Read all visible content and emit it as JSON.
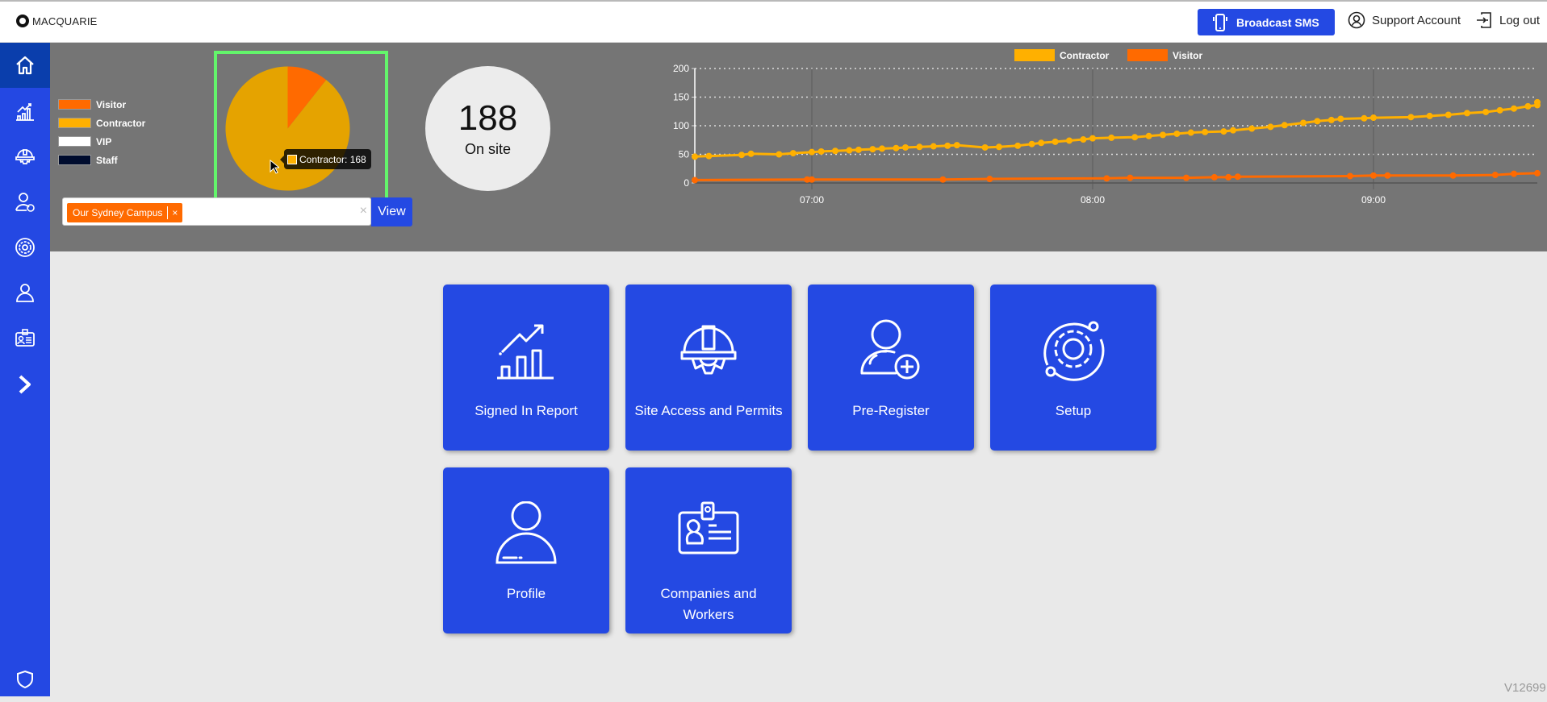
{
  "header": {
    "logo_text": "MACQUARIE",
    "broadcast_label": "Broadcast SMS",
    "support_label": "Support Account",
    "logout_label": "Log out"
  },
  "sidebar": {
    "items": [
      {
        "name": "home",
        "icon": "home-icon",
        "active": true
      },
      {
        "name": "signed-in-report",
        "icon": "chart-growth-icon"
      },
      {
        "name": "site-access",
        "icon": "hardhat-gear-icon"
      },
      {
        "name": "pre-register",
        "icon": "user-plus-icon"
      },
      {
        "name": "setup",
        "icon": "gear-orbit-icon"
      },
      {
        "name": "profile",
        "icon": "user-icon"
      },
      {
        "name": "companies",
        "icon": "id-badge-icon"
      },
      {
        "name": "expand",
        "icon": "chevron-right-icon"
      }
    ],
    "bottom_icon": "shield-icon"
  },
  "summary": {
    "legend": [
      {
        "label": "Visitor",
        "color": "#ff6a00"
      },
      {
        "label": "Contractor",
        "color": "#ffb000"
      },
      {
        "label": "VIP",
        "color": "#ffffff"
      },
      {
        "label": "Staff",
        "color": "#000c2e"
      }
    ],
    "tooltip": "Contractor: 168",
    "onsite_count": "188",
    "onsite_label": "On site",
    "site_chip": "Our Sydney Campus",
    "chip_remove": "×",
    "clear": "×",
    "view_label": "View"
  },
  "tiles": [
    {
      "label": "Signed In Report",
      "icon": "chart-growth-icon"
    },
    {
      "label": "Site Access and Permits",
      "icon": "hardhat-gear-icon"
    },
    {
      "label": "Pre-Register",
      "icon": "user-plus-icon"
    },
    {
      "label": "Setup",
      "icon": "gear-orbit-icon"
    },
    {
      "label": "Profile",
      "icon": "user-icon"
    },
    {
      "label": "Companies and Workers",
      "icon": "id-badge-icon"
    }
  ],
  "version": "V12699",
  "chart_data": [
    {
      "type": "pie",
      "title": "",
      "categories": [
        "Visitor",
        "Contractor",
        "VIP",
        "Staff"
      ],
      "values": [
        20,
        168,
        0,
        0
      ],
      "colors": [
        "#ff6a00",
        "#e5a300",
        "#ffffff",
        "#000c2e"
      ],
      "legend_position": "left"
    },
    {
      "type": "line",
      "title": "",
      "xlabel": "",
      "ylabel": "",
      "ylim": [
        0,
        200
      ],
      "yticks": [
        0,
        50,
        100,
        150,
        200
      ],
      "xticks": [
        "07:00",
        "08:00",
        "09:00"
      ],
      "xrange": [
        "06:35",
        "09:35"
      ],
      "grid": true,
      "legend_position": "top",
      "series": [
        {
          "name": "Contractor",
          "color": "#ffb000",
          "points": [
            [
              "06:35",
              46
            ],
            [
              "06:38",
              47
            ],
            [
              "06:45",
              49
            ],
            [
              "06:47",
              51
            ],
            [
              "06:53",
              50
            ],
            [
              "06:56",
              52
            ],
            [
              "07:00",
              54
            ],
            [
              "07:02",
              55
            ],
            [
              "07:05",
              56
            ],
            [
              "07:08",
              57
            ],
            [
              "07:10",
              58
            ],
            [
              "07:13",
              59
            ],
            [
              "07:15",
              60
            ],
            [
              "07:18",
              61
            ],
            [
              "07:20",
              62
            ],
            [
              "07:23",
              63
            ],
            [
              "07:26",
              64
            ],
            [
              "07:29",
              65
            ],
            [
              "07:31",
              66
            ],
            [
              "07:37",
              62
            ],
            [
              "07:40",
              63
            ],
            [
              "07:44",
              65
            ],
            [
              "07:47",
              68
            ],
            [
              "07:49",
              70
            ],
            [
              "07:52",
              72
            ],
            [
              "07:55",
              74
            ],
            [
              "07:58",
              76
            ],
            [
              "08:00",
              78
            ],
            [
              "08:04",
              79
            ],
            [
              "08:09",
              80
            ],
            [
              "08:12",
              82
            ],
            [
              "08:15",
              84
            ],
            [
              "08:18",
              86
            ],
            [
              "08:21",
              88
            ],
            [
              "08:24",
              89
            ],
            [
              "08:28",
              90
            ],
            [
              "08:30",
              92
            ],
            [
              "08:34",
              95
            ],
            [
              "08:38",
              98
            ],
            [
              "08:41",
              101
            ],
            [
              "08:45",
              105
            ],
            [
              "08:48",
              108
            ],
            [
              "08:51",
              110
            ],
            [
              "08:53",
              112
            ],
            [
              "08:58",
              113
            ],
            [
              "09:00",
              114
            ],
            [
              "09:08",
              115
            ],
            [
              "09:12",
              117
            ],
            [
              "09:16",
              119
            ],
            [
              "09:20",
              122
            ],
            [
              "09:24",
              124
            ],
            [
              "09:27",
              127
            ],
            [
              "09:30",
              130
            ],
            [
              "09:33",
              134
            ],
            [
              "09:35",
              136
            ],
            [
              "09:35",
              141
            ]
          ]
        },
        {
          "name": "Visitor",
          "color": "#ff6a00",
          "points": [
            [
              "06:35",
              5
            ],
            [
              "06:59",
              6
            ],
            [
              "07:00",
              6
            ],
            [
              "07:28",
              6
            ],
            [
              "07:38",
              7
            ],
            [
              "08:03",
              8
            ],
            [
              "08:08",
              9
            ],
            [
              "08:20",
              9
            ],
            [
              "08:26",
              10
            ],
            [
              "08:29",
              10
            ],
            [
              "08:31",
              11
            ],
            [
              "08:55",
              12
            ],
            [
              "09:00",
              13
            ],
            [
              "09:03",
              13
            ],
            [
              "09:17",
              13
            ],
            [
              "09:26",
              14
            ],
            [
              "09:30",
              16
            ],
            [
              "09:35",
              17
            ]
          ]
        }
      ]
    }
  ]
}
